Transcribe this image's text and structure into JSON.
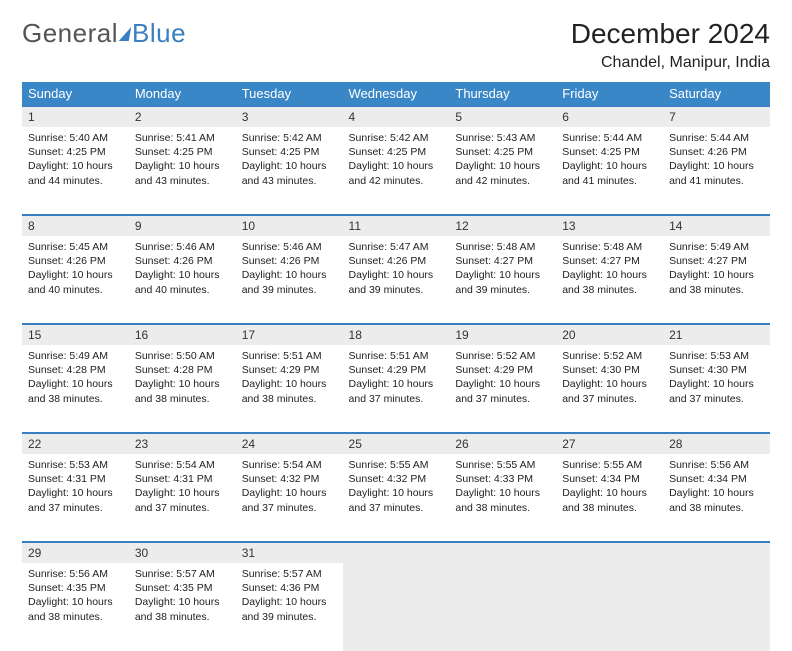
{
  "logo": {
    "text1": "General",
    "text2": "Blue"
  },
  "title": "December 2024",
  "location": "Chandel, Manipur, India",
  "colors": {
    "header_bg": "#3a87c7",
    "header_fg": "#ffffff",
    "rule": "#3a7fbf",
    "daynum_bg": "#ececec",
    "page_bg": "#ffffff"
  },
  "weekdays": [
    "Sunday",
    "Monday",
    "Tuesday",
    "Wednesday",
    "Thursday",
    "Friday",
    "Saturday"
  ],
  "weeks": [
    [
      {
        "n": "1",
        "sr": "5:40 AM",
        "ss": "4:25 PM",
        "dl": "10 hours and 44 minutes."
      },
      {
        "n": "2",
        "sr": "5:41 AM",
        "ss": "4:25 PM",
        "dl": "10 hours and 43 minutes."
      },
      {
        "n": "3",
        "sr": "5:42 AM",
        "ss": "4:25 PM",
        "dl": "10 hours and 43 minutes."
      },
      {
        "n": "4",
        "sr": "5:42 AM",
        "ss": "4:25 PM",
        "dl": "10 hours and 42 minutes."
      },
      {
        "n": "5",
        "sr": "5:43 AM",
        "ss": "4:25 PM",
        "dl": "10 hours and 42 minutes."
      },
      {
        "n": "6",
        "sr": "5:44 AM",
        "ss": "4:25 PM",
        "dl": "10 hours and 41 minutes."
      },
      {
        "n": "7",
        "sr": "5:44 AM",
        "ss": "4:26 PM",
        "dl": "10 hours and 41 minutes."
      }
    ],
    [
      {
        "n": "8",
        "sr": "5:45 AM",
        "ss": "4:26 PM",
        "dl": "10 hours and 40 minutes."
      },
      {
        "n": "9",
        "sr": "5:46 AM",
        "ss": "4:26 PM",
        "dl": "10 hours and 40 minutes."
      },
      {
        "n": "10",
        "sr": "5:46 AM",
        "ss": "4:26 PM",
        "dl": "10 hours and 39 minutes."
      },
      {
        "n": "11",
        "sr": "5:47 AM",
        "ss": "4:26 PM",
        "dl": "10 hours and 39 minutes."
      },
      {
        "n": "12",
        "sr": "5:48 AM",
        "ss": "4:27 PM",
        "dl": "10 hours and 39 minutes."
      },
      {
        "n": "13",
        "sr": "5:48 AM",
        "ss": "4:27 PM",
        "dl": "10 hours and 38 minutes."
      },
      {
        "n": "14",
        "sr": "5:49 AM",
        "ss": "4:27 PM",
        "dl": "10 hours and 38 minutes."
      }
    ],
    [
      {
        "n": "15",
        "sr": "5:49 AM",
        "ss": "4:28 PM",
        "dl": "10 hours and 38 minutes."
      },
      {
        "n": "16",
        "sr": "5:50 AM",
        "ss": "4:28 PM",
        "dl": "10 hours and 38 minutes."
      },
      {
        "n": "17",
        "sr": "5:51 AM",
        "ss": "4:29 PM",
        "dl": "10 hours and 38 minutes."
      },
      {
        "n": "18",
        "sr": "5:51 AM",
        "ss": "4:29 PM",
        "dl": "10 hours and 37 minutes."
      },
      {
        "n": "19",
        "sr": "5:52 AM",
        "ss": "4:29 PM",
        "dl": "10 hours and 37 minutes."
      },
      {
        "n": "20",
        "sr": "5:52 AM",
        "ss": "4:30 PM",
        "dl": "10 hours and 37 minutes."
      },
      {
        "n": "21",
        "sr": "5:53 AM",
        "ss": "4:30 PM",
        "dl": "10 hours and 37 minutes."
      }
    ],
    [
      {
        "n": "22",
        "sr": "5:53 AM",
        "ss": "4:31 PM",
        "dl": "10 hours and 37 minutes."
      },
      {
        "n": "23",
        "sr": "5:54 AM",
        "ss": "4:31 PM",
        "dl": "10 hours and 37 minutes."
      },
      {
        "n": "24",
        "sr": "5:54 AM",
        "ss": "4:32 PM",
        "dl": "10 hours and 37 minutes."
      },
      {
        "n": "25",
        "sr": "5:55 AM",
        "ss": "4:32 PM",
        "dl": "10 hours and 37 minutes."
      },
      {
        "n": "26",
        "sr": "5:55 AM",
        "ss": "4:33 PM",
        "dl": "10 hours and 38 minutes."
      },
      {
        "n": "27",
        "sr": "5:55 AM",
        "ss": "4:34 PM",
        "dl": "10 hours and 38 minutes."
      },
      {
        "n": "28",
        "sr": "5:56 AM",
        "ss": "4:34 PM",
        "dl": "10 hours and 38 minutes."
      }
    ],
    [
      {
        "n": "29",
        "sr": "5:56 AM",
        "ss": "4:35 PM",
        "dl": "10 hours and 38 minutes."
      },
      {
        "n": "30",
        "sr": "5:57 AM",
        "ss": "4:35 PM",
        "dl": "10 hours and 38 minutes."
      },
      {
        "n": "31",
        "sr": "5:57 AM",
        "ss": "4:36 PM",
        "dl": "10 hours and 39 minutes."
      },
      null,
      null,
      null,
      null
    ]
  ],
  "labels": {
    "sunrise": "Sunrise:",
    "sunset": "Sunset:",
    "daylight": "Daylight:"
  }
}
